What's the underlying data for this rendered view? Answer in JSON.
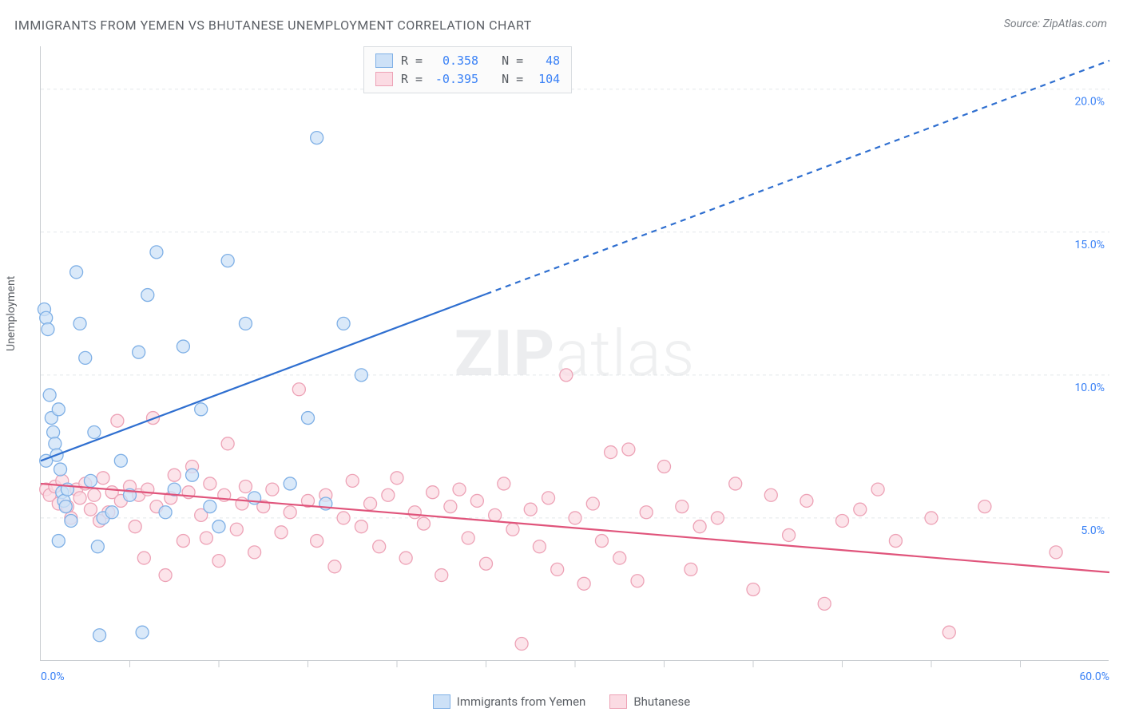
{
  "title": "IMMIGRANTS FROM YEMEN VS BHUTANESE UNEMPLOYMENT CORRELATION CHART",
  "source_label": "Source: ZipAtlas.com",
  "ylabel": "Unemployment",
  "watermark_bold": "ZIP",
  "watermark_rest": "atlas",
  "chart": {
    "type": "scatter",
    "xlim": [
      0,
      60
    ],
    "ylim": [
      0,
      21.5
    ],
    "x_tick_label_min": "0.0%",
    "x_tick_label_max": "60.0%",
    "y_ticks": [
      5.0,
      10.0,
      15.0,
      20.0
    ],
    "y_tick_labels": [
      "5.0%",
      "10.0%",
      "15.0%",
      "20.0%"
    ],
    "x_minor_ticks": [
      5,
      10,
      15,
      20,
      25,
      30,
      35,
      40,
      45,
      50,
      55
    ],
    "grid_color": "#e4e7ea",
    "grid_dash": "4 4",
    "background_color": "#ffffff",
    "axis_color": "#c9cdd1",
    "marker_radius": 8,
    "marker_stroke_width": 1.3,
    "line_width": 2.2,
    "dash_pattern": "7 6"
  },
  "series": [
    {
      "name": "Immigrants from Yemen",
      "fill": "#cde1f7",
      "stroke": "#7fb0e6",
      "line_color": "#2f6fd0",
      "R": "0.358",
      "N": "48",
      "trend": {
        "x1": 0,
        "y1": 7.0,
        "x2": 60,
        "y2": 21.0,
        "solid_until_x": 25
      },
      "points": [
        [
          0.2,
          12.3
        ],
        [
          0.3,
          12.0
        ],
        [
          0.4,
          11.6
        ],
        [
          0.5,
          9.3
        ],
        [
          0.6,
          8.5
        ],
        [
          0.7,
          8.0
        ],
        [
          0.8,
          7.6
        ],
        [
          0.9,
          7.2
        ],
        [
          1.0,
          8.8
        ],
        [
          1.1,
          6.7
        ],
        [
          1.2,
          5.9
        ],
        [
          1.3,
          5.6
        ],
        [
          1.4,
          5.4
        ],
        [
          1.5,
          6.0
        ],
        [
          1.7,
          4.9
        ],
        [
          2.0,
          13.6
        ],
        [
          2.2,
          11.8
        ],
        [
          2.5,
          10.6
        ],
        [
          3.0,
          8.0
        ],
        [
          3.2,
          4.0
        ],
        [
          3.5,
          5.0
        ],
        [
          4.0,
          5.2
        ],
        [
          4.5,
          7.0
        ],
        [
          5.0,
          5.8
        ],
        [
          5.5,
          10.8
        ],
        [
          6.0,
          12.8
        ],
        [
          6.5,
          14.3
        ],
        [
          7.0,
          5.2
        ],
        [
          7.5,
          6.0
        ],
        [
          8.0,
          11.0
        ],
        [
          8.5,
          6.5
        ],
        [
          9.0,
          8.8
        ],
        [
          9.5,
          5.4
        ],
        [
          10.0,
          4.7
        ],
        [
          10.5,
          14.0
        ],
        [
          11.5,
          11.8
        ],
        [
          12.0,
          5.7
        ],
        [
          14.0,
          6.2
        ],
        [
          15.0,
          8.5
        ],
        [
          15.5,
          18.3
        ],
        [
          16.0,
          5.5
        ],
        [
          17.0,
          11.8
        ],
        [
          18.0,
          10.0
        ],
        [
          5.7,
          1.0
        ],
        [
          3.3,
          0.9
        ],
        [
          0.3,
          7.0
        ],
        [
          1.0,
          4.2
        ],
        [
          2.8,
          6.3
        ]
      ]
    },
    {
      "name": "Bhutanese",
      "fill": "#fbdbe3",
      "stroke": "#eda2b6",
      "line_color": "#e0547b",
      "R": "-0.395",
      "N": "104",
      "trend": {
        "x1": 0,
        "y1": 6.2,
        "x2": 60,
        "y2": 3.1,
        "solid_until_x": 60
      },
      "points": [
        [
          0.3,
          6.0
        ],
        [
          0.5,
          5.8
        ],
        [
          0.8,
          6.1
        ],
        [
          1.0,
          5.5
        ],
        [
          1.2,
          6.3
        ],
        [
          1.5,
          5.4
        ],
        [
          1.7,
          5.0
        ],
        [
          2.0,
          6.0
        ],
        [
          2.2,
          5.7
        ],
        [
          2.5,
          6.2
        ],
        [
          2.8,
          5.3
        ],
        [
          3.0,
          5.8
        ],
        [
          3.3,
          4.9
        ],
        [
          3.5,
          6.4
        ],
        [
          3.8,
          5.2
        ],
        [
          4.0,
          5.9
        ],
        [
          4.3,
          8.4
        ],
        [
          4.5,
          5.6
        ],
        [
          5.0,
          6.1
        ],
        [
          5.3,
          4.7
        ],
        [
          5.5,
          5.8
        ],
        [
          5.8,
          3.6
        ],
        [
          6.0,
          6.0
        ],
        [
          6.3,
          8.5
        ],
        [
          6.5,
          5.4
        ],
        [
          7.0,
          3.0
        ],
        [
          7.3,
          5.7
        ],
        [
          7.5,
          6.5
        ],
        [
          8.0,
          4.2
        ],
        [
          8.3,
          5.9
        ],
        [
          8.5,
          6.8
        ],
        [
          9.0,
          5.1
        ],
        [
          9.3,
          4.3
        ],
        [
          9.5,
          6.2
        ],
        [
          10.0,
          3.5
        ],
        [
          10.3,
          5.8
        ],
        [
          10.5,
          7.6
        ],
        [
          11.0,
          4.6
        ],
        [
          11.3,
          5.5
        ],
        [
          11.5,
          6.1
        ],
        [
          12.0,
          3.8
        ],
        [
          12.5,
          5.4
        ],
        [
          13.0,
          6.0
        ],
        [
          13.5,
          4.5
        ],
        [
          14.0,
          5.2
        ],
        [
          14.5,
          9.5
        ],
        [
          15.0,
          5.6
        ],
        [
          15.5,
          4.2
        ],
        [
          16.0,
          5.8
        ],
        [
          16.5,
          3.3
        ],
        [
          17.0,
          5.0
        ],
        [
          17.5,
          6.3
        ],
        [
          18.0,
          4.7
        ],
        [
          18.5,
          5.5
        ],
        [
          19.0,
          4.0
        ],
        [
          19.5,
          5.8
        ],
        [
          20.0,
          6.4
        ],
        [
          20.5,
          3.6
        ],
        [
          21.0,
          5.2
        ],
        [
          21.5,
          4.8
        ],
        [
          22.0,
          5.9
        ],
        [
          22.5,
          3.0
        ],
        [
          23.0,
          5.4
        ],
        [
          23.5,
          6.0
        ],
        [
          24.0,
          4.3
        ],
        [
          24.5,
          5.6
        ],
        [
          25.0,
          3.4
        ],
        [
          25.5,
          5.1
        ],
        [
          26.0,
          6.2
        ],
        [
          26.5,
          4.6
        ],
        [
          27.0,
          0.6
        ],
        [
          27.5,
          5.3
        ],
        [
          28.0,
          4.0
        ],
        [
          28.5,
          5.7
        ],
        [
          29.0,
          3.2
        ],
        [
          29.5,
          10.0
        ],
        [
          30.0,
          5.0
        ],
        [
          30.5,
          2.7
        ],
        [
          31.0,
          5.5
        ],
        [
          31.5,
          4.2
        ],
        [
          32.0,
          7.3
        ],
        [
          32.5,
          3.6
        ],
        [
          33.0,
          7.4
        ],
        [
          33.5,
          2.8
        ],
        [
          34.0,
          5.2
        ],
        [
          35.0,
          6.8
        ],
        [
          36.0,
          5.4
        ],
        [
          36.5,
          3.2
        ],
        [
          37.0,
          4.7
        ],
        [
          38.0,
          5.0
        ],
        [
          39.0,
          6.2
        ],
        [
          40.0,
          2.5
        ],
        [
          41.0,
          5.8
        ],
        [
          42.0,
          4.4
        ],
        [
          43.0,
          5.6
        ],
        [
          44.0,
          2.0
        ],
        [
          45.0,
          4.9
        ],
        [
          46.0,
          5.3
        ],
        [
          47.0,
          6.0
        ],
        [
          48.0,
          4.2
        ],
        [
          50.0,
          5.0
        ],
        [
          51.0,
          1.0
        ],
        [
          53.0,
          5.4
        ],
        [
          57.0,
          3.8
        ]
      ]
    }
  ],
  "legend": {
    "series1_label": "Immigrants from Yemen",
    "series2_label": "Bhutanese"
  },
  "stats_labels": {
    "R": "R =",
    "N": "N ="
  }
}
